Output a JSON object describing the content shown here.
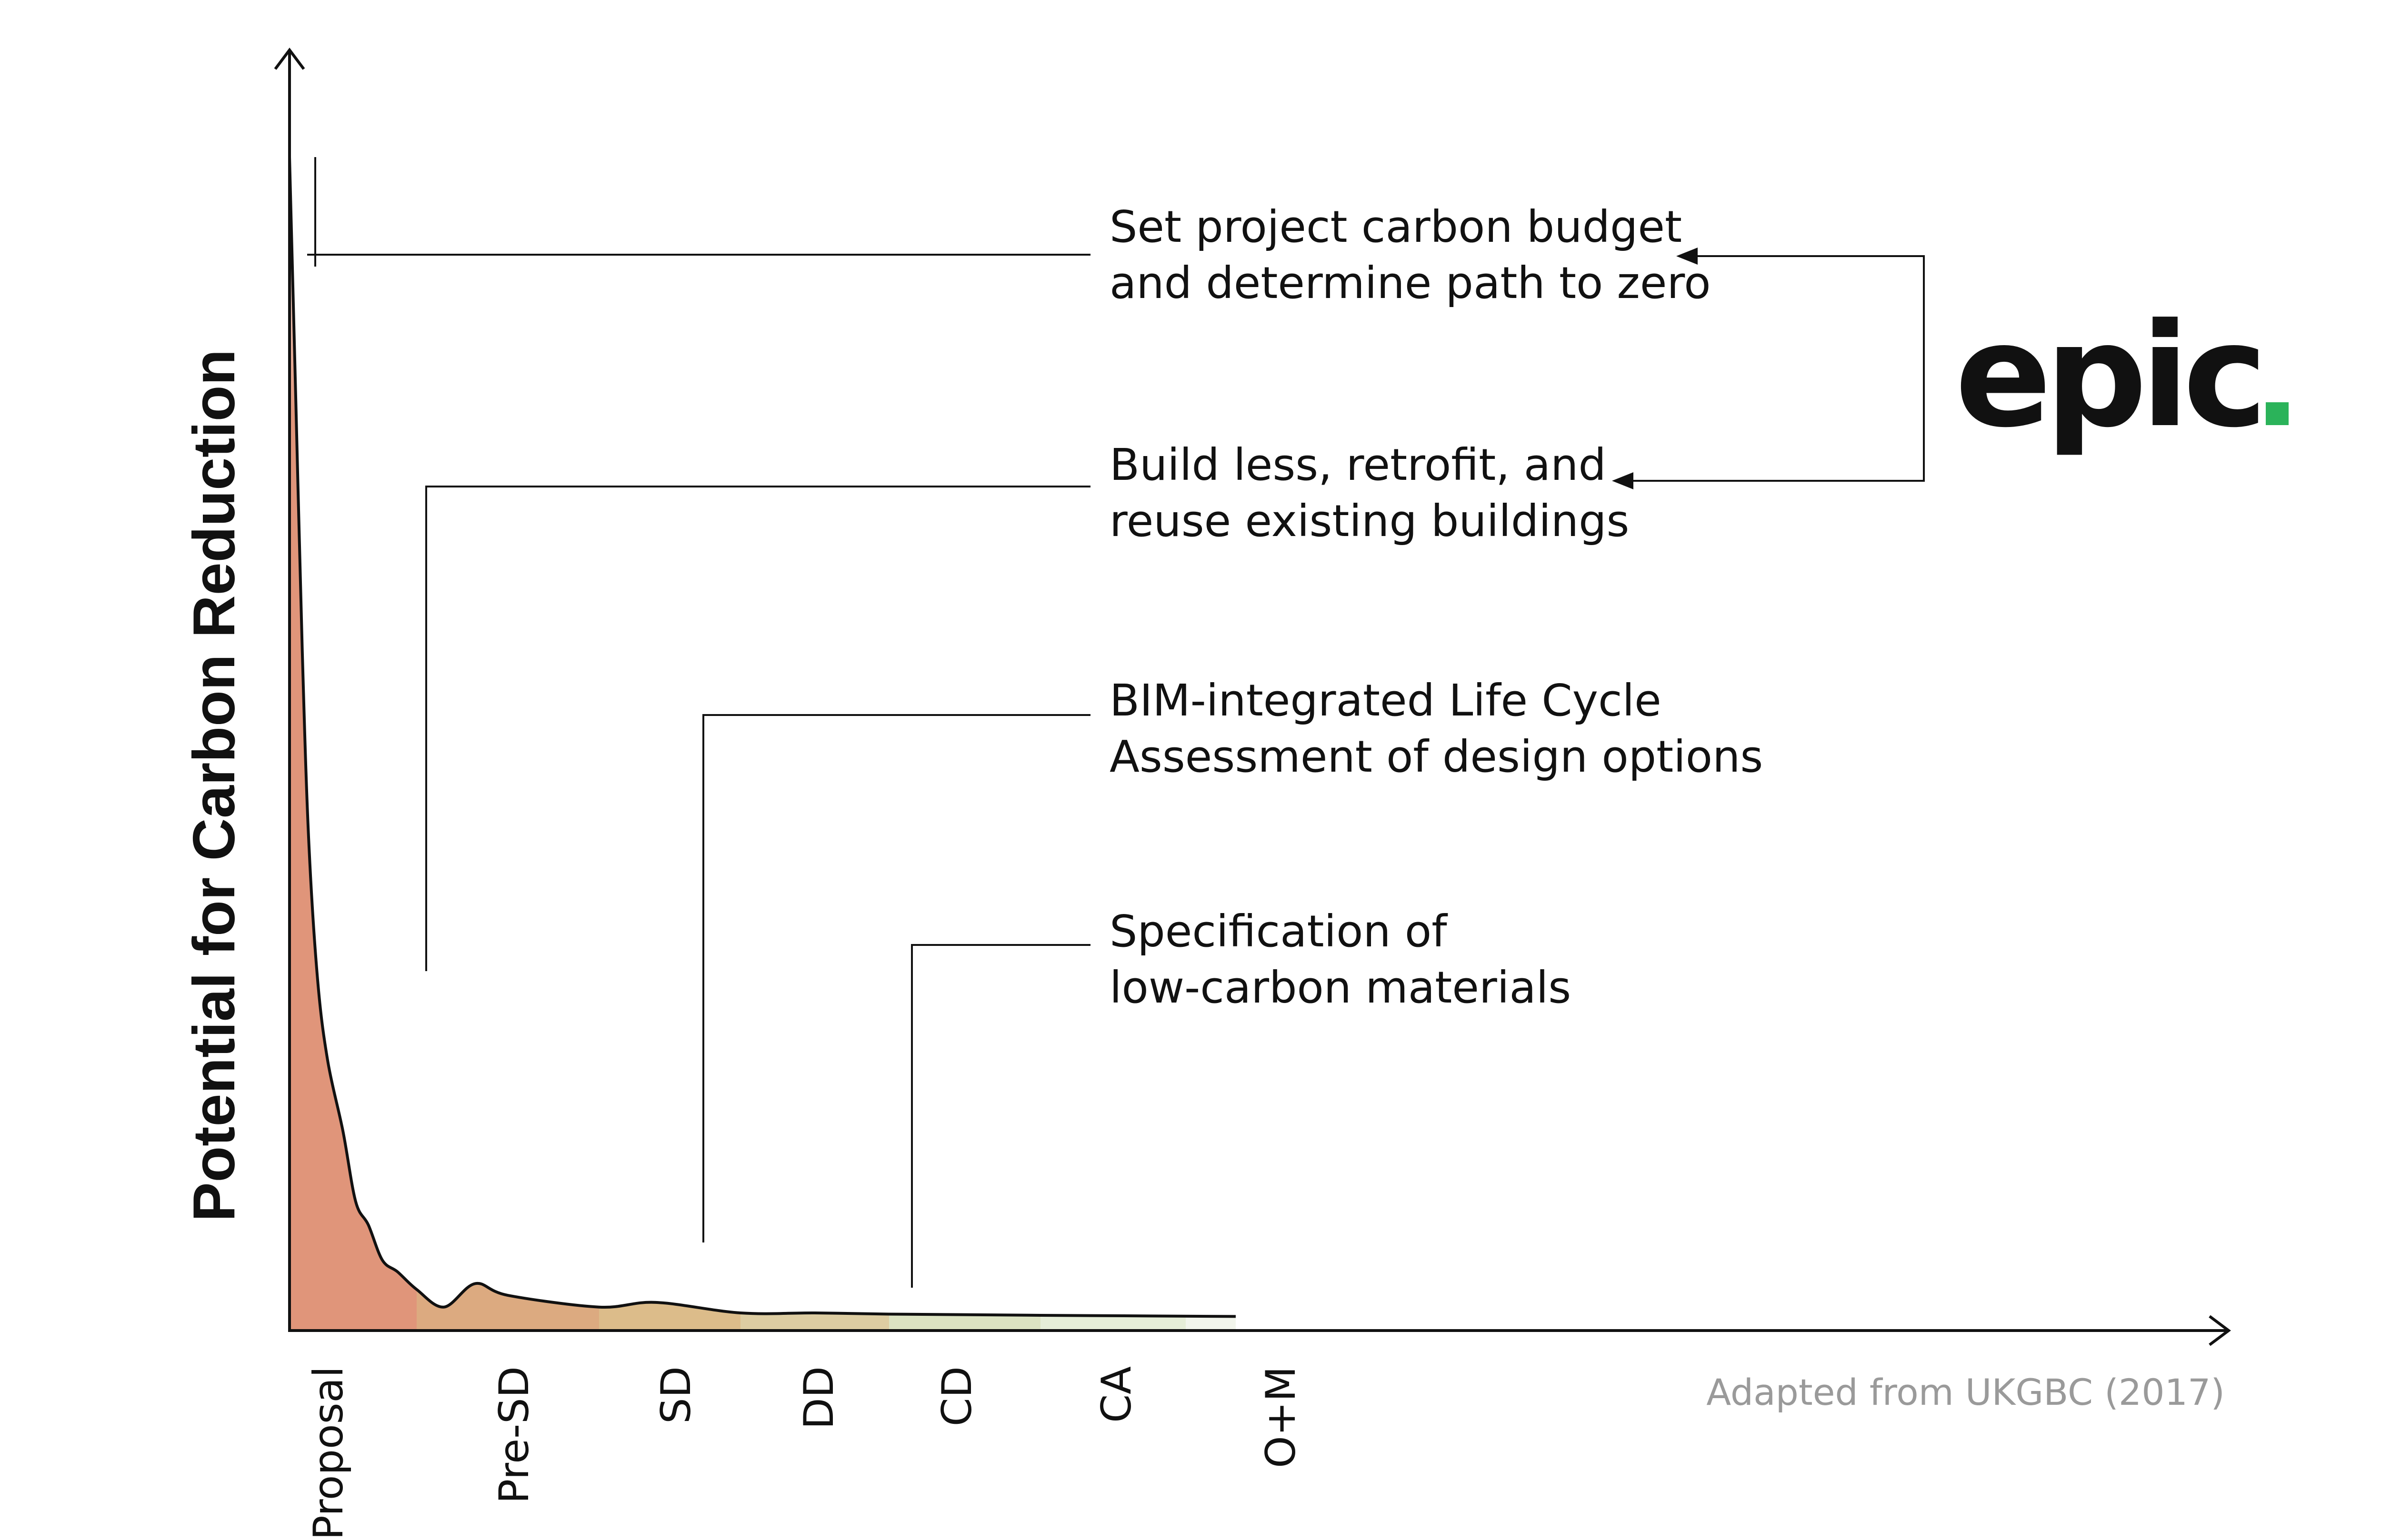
{
  "chart_data": {
    "type": "area",
    "ylabel": "Potential for Carbon Reduction",
    "xlabel": "",
    "phases": [
      {
        "label": "Proposal",
        "color": "#e0957a"
      },
      {
        "label": "Pre-SD",
        "color": "#dcaa80"
      },
      {
        "label": "SD",
        "color": "#dcbc8a"
      },
      {
        "label": "DD",
        "color": "#ddcda2"
      },
      {
        "label": "CD",
        "color": "#dce3c2"
      },
      {
        "label": "CA",
        "color": "#e6eed8"
      },
      {
        "label": "O+M",
        "color": "#f2f5ec"
      }
    ],
    "curve_values": [
      {
        "x": 0.0,
        "y": 1.0
      },
      {
        "x": 0.05,
        "y": 0.79
      },
      {
        "x": 0.1,
        "y": 0.58
      },
      {
        "x": 0.15,
        "y": 0.42
      },
      {
        "x": 0.22,
        "y": 0.3
      },
      {
        "x": 0.3,
        "y": 0.23
      },
      {
        "x": 0.42,
        "y": 0.17
      },
      {
        "x": 0.52,
        "y": 0.11
      },
      {
        "x": 0.62,
        "y": 0.09
      },
      {
        "x": 0.73,
        "y": 0.06
      },
      {
        "x": 0.85,
        "y": 0.05
      },
      {
        "x": 1.0,
        "y": 0.035
      },
      {
        "x": 1.15,
        "y": 0.02
      },
      {
        "x": 1.32,
        "y": 0.04
      },
      {
        "x": 1.5,
        "y": 0.03
      },
      {
        "x": 2.0,
        "y": 0.02
      },
      {
        "x": 2.4,
        "y": 0.024
      },
      {
        "x": 3.0,
        "y": 0.015
      },
      {
        "x": 3.5,
        "y": 0.015
      },
      {
        "x": 4.0,
        "y": 0.014
      },
      {
        "x": 5.0,
        "y": 0.013
      },
      {
        "x": 6.5,
        "y": 0.012
      }
    ],
    "annotations": [
      {
        "lines": [
          "Set project carbon budget",
          "and determine path to zero"
        ],
        "phase": "Proposal"
      },
      {
        "lines": [
          "Build less, retrofit, and",
          "reuse existing buildings"
        ],
        "phase": "Pre-SD"
      },
      {
        "lines": [
          "BIM-integrated Life Cycle",
          "Assessment of design options"
        ],
        "phase": "SD"
      },
      {
        "lines": [
          "Specification of",
          "low-carbon materials"
        ],
        "phase": "CD"
      }
    ],
    "grid": false,
    "legend": "none"
  },
  "logo": {
    "text": "epic",
    "dot_color": "#2bb35a"
  },
  "source": "Adapted from UKGBC (2017)"
}
